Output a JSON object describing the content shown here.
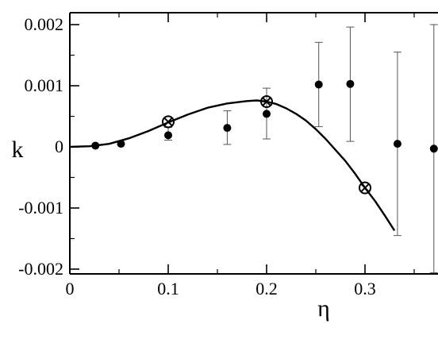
{
  "chart_data": {
    "type": "scatter",
    "title": "",
    "xlabel": "η",
    "ylabel": "k",
    "xlim": [
      0,
      0.37
    ],
    "ylim": [
      -0.0021,
      0.0021
    ],
    "x_ticks": [
      0,
      0.1,
      0.2,
      0.3
    ],
    "x_tick_labels": [
      "0",
      "0.1",
      "0.2",
      "0.3"
    ],
    "y_ticks": [
      -0.002,
      -0.001,
      0,
      0.001,
      0.002
    ],
    "y_tick_labels": [
      "-0.002",
      "-0.001",
      "0",
      "0.001",
      "0.002"
    ],
    "grid": false,
    "legend": "none",
    "series": [
      {
        "kind": "points_with_error_bars",
        "marker": "filled-circle",
        "color": "#000000",
        "x": [
          0.026,
          0.052,
          0.1,
          0.16,
          0.2,
          0.253,
          0.285,
          0.333,
          0.37
        ],
        "y": [
          2e-05,
          5e-05,
          0.00019,
          0.00031,
          0.00054,
          0.00102,
          0.00103,
          5e-05,
          -3e-05
        ],
        "err_low": [
          null,
          null,
          8e-05,
          0.00027,
          0.00041,
          0.00069,
          0.00094,
          0.0015,
          0.00203
        ],
        "err_high": [
          null,
          null,
          0.00013,
          0.00028,
          0.00042,
          0.00069,
          0.00093,
          0.0015,
          0.00203
        ]
      },
      {
        "kind": "line",
        "color": "#000000",
        "x": [
          0,
          0.02,
          0.04,
          0.06,
          0.08,
          0.1,
          0.12,
          0.14,
          0.16,
          0.18,
          0.19,
          0.2,
          0.21,
          0.22,
          0.23,
          0.24,
          0.25,
          0.26,
          0.27,
          0.28,
          0.29,
          0.3,
          0.31,
          0.32,
          0.33
        ],
        "y": [
          0,
          1e-05,
          5e-05,
          0.00014,
          0.00026,
          0.0004,
          0.00053,
          0.00064,
          0.00071,
          0.00075,
          0.00076,
          0.00074,
          0.0007,
          0.00063,
          0.00054,
          0.00043,
          0.00029,
          0.00013,
          -5e-05,
          -0.00023,
          -0.00044,
          -0.00067,
          -0.00088,
          -0.00112,
          -0.00137
        ]
      },
      {
        "kind": "points",
        "marker": "circle-cross",
        "color": "#000000",
        "x": [
          0.1,
          0.2,
          0.3
        ],
        "y": [
          0.00041,
          0.00074,
          -0.00067
        ]
      }
    ]
  }
}
